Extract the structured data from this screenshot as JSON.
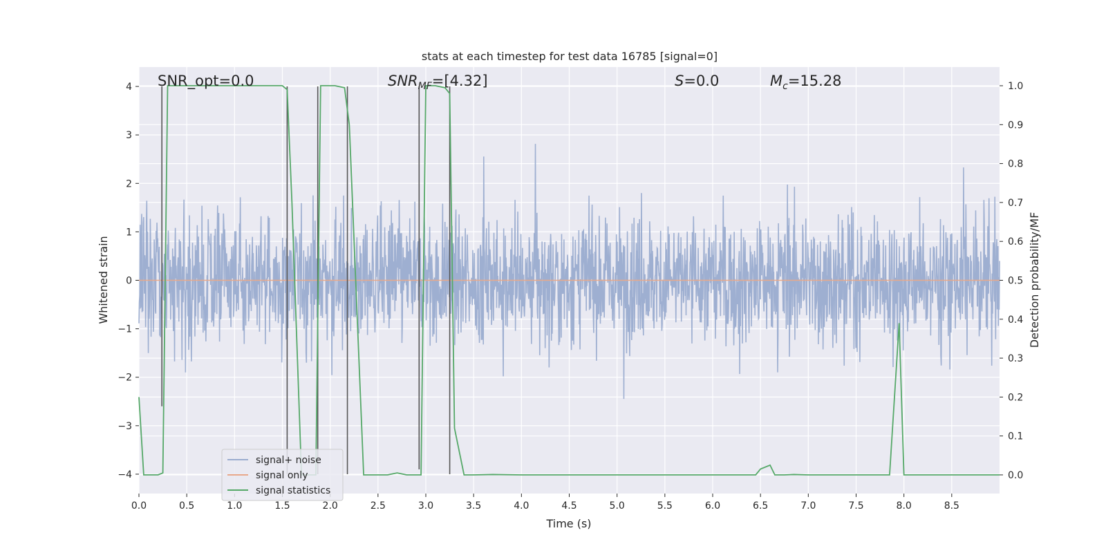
{
  "chart_data": {
    "type": "line",
    "title": "stats at each timestep for test data 16785 [signal=0]",
    "xlabel": "Time (s)",
    "ylabel": "Whitened strain",
    "y2label": "Detection probability/MF",
    "xlim": [
      0.0,
      9.0
    ],
    "ylim": [
      -4.4,
      4.4
    ],
    "y2lim": [
      -0.048,
      1.048
    ],
    "grid": true,
    "xticks": [
      "0.0",
      "0.5",
      "1.0",
      "1.5",
      "2.0",
      "2.5",
      "3.0",
      "3.5",
      "4.0",
      "4.5",
      "5.0",
      "5.5",
      "6.0",
      "6.5",
      "7.0",
      "7.5",
      "8.0",
      "8.5"
    ],
    "yticks": [
      "−4",
      "−3",
      "−2",
      "−1",
      "0",
      "1",
      "2",
      "3",
      "4"
    ],
    "y2ticks": [
      "0.0",
      "0.1",
      "0.2",
      "0.3",
      "0.4",
      "0.5",
      "0.6",
      "0.7",
      "0.8",
      "0.9",
      "1.0"
    ],
    "annotations": {
      "snr_opt": "SNR_opt=0.0",
      "snr_mf_main": "SNR",
      "snr_mf_sub": "MF",
      "snr_mf_value": "=[4.32]",
      "s_main": "S",
      "s_value": "=0.0",
      "mc_main": "M",
      "mc_sub": "c",
      "mc_value": "=15.28"
    },
    "legend": {
      "position": "lower-left",
      "entries": [
        {
          "label": "signal+ noise",
          "color": "#9aaccf"
        },
        {
          "label": "signal only",
          "color": "#e8a88a"
        },
        {
          "label": "signal statistics",
          "color": "#55a868"
        }
      ]
    },
    "series": [
      {
        "name": "signal+ noise",
        "axis": "left",
        "color": "#9aaccf",
        "style": "dense noise, roughly ±2 with spikes up to about ±4"
      },
      {
        "name": "signal only",
        "axis": "left",
        "color": "#e8a88a",
        "x": [
          0.0,
          9.0
        ],
        "y": [
          0.0,
          0.0
        ]
      },
      {
        "name": "signal statistics",
        "axis": "right",
        "color": "#55a868",
        "x": [
          0.0,
          0.05,
          0.2,
          0.25,
          0.3,
          0.4,
          0.5,
          1.0,
          1.5,
          1.55,
          1.6,
          1.7,
          1.75,
          1.85,
          1.9,
          1.95,
          2.05,
          2.15,
          2.2,
          2.3,
          2.35,
          2.45,
          2.6,
          2.7,
          2.8,
          2.95,
          3.0,
          3.1,
          3.2,
          3.25,
          3.3,
          3.4,
          3.5,
          3.7,
          4.0,
          5.0,
          6.0,
          6.45,
          6.5,
          6.6,
          6.65,
          6.75,
          6.85,
          7.0,
          7.5,
          7.85,
          7.95,
          8.0,
          8.05,
          8.5,
          9.0
        ],
        "y": [
          0.2,
          0.0,
          0.0,
          0.005,
          1.0,
          1.0,
          1.0,
          1.0,
          1.0,
          0.99,
          0.7,
          0.0,
          0.0,
          0.0,
          1.0,
          1.0,
          1.0,
          0.995,
          0.9,
          0.3,
          0.0,
          0.0,
          0.0,
          0.005,
          0.0,
          0.0,
          1.0,
          1.0,
          0.995,
          0.98,
          0.12,
          0.0,
          0.0,
          0.001,
          0.0,
          0.0,
          0.0,
          0.0,
          0.015,
          0.025,
          0.0,
          0.0,
          0.001,
          0.0,
          0.0,
          0.0,
          0.39,
          0.0,
          0.0,
          0.0,
          0.0
        ]
      },
      {
        "name": "detection markers",
        "axis": "left",
        "color": "#555555",
        "x": [
          0.24,
          1.55,
          1.87,
          2.18,
          2.93,
          3.25
        ],
        "y_top": [
          4.0,
          4.0,
          4.0,
          4.0,
          4.0,
          4.0
        ],
        "y_bottom": [
          -2.6,
          -4.0,
          -4.0,
          -4.0,
          -3.9,
          -4.0
        ]
      }
    ]
  }
}
